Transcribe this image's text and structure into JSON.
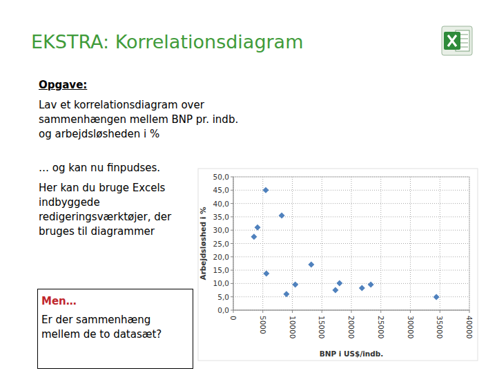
{
  "slide": {
    "title": "EKSTRA: Korrelationsdiagram",
    "task_heading": "Opgave:",
    "task_text": "Lav et korrelationsdiagram over sammenhængen mellem BNP pr. indb. og arbejdsløsheden i %",
    "note": "… og kan nu finpudses.",
    "hint": "Her kan du bruge Excels indbyggede redigeringsværktøjer, der bruges til diagrammer",
    "box_heading": "Men…",
    "box_text": "Er der sammenhæng mellem de to datasæt?"
  },
  "chart_data": {
    "type": "scatter",
    "x_label": "BNP i US$/indb.",
    "y_label": "Arbejdsløshed i %",
    "x": [
      3500,
      4100,
      5500,
      5600,
      8200,
      9000,
      10500,
      13200,
      17300,
      18000,
      21800,
      23300,
      34400
    ],
    "values": [
      27.5,
      31.0,
      45.0,
      13.7,
      35.5,
      6.0,
      9.6,
      17.1,
      7.5,
      10.1,
      8.3,
      9.6,
      4.9
    ],
    "color": "#4f81bd",
    "marker": "diamond",
    "xlim": [
      0,
      40000
    ],
    "xticks": [
      0,
      5000,
      10000,
      15000,
      20000,
      25000,
      30000,
      35000,
      40000
    ],
    "ylim": [
      0,
      50
    ],
    "yticks": [
      {
        "value": 0,
        "label": "0,0"
      },
      {
        "value": 5,
        "label": "5,0"
      },
      {
        "value": 10,
        "label": "10,0"
      },
      {
        "value": 15,
        "label": "15,0"
      },
      {
        "value": 20,
        "label": "20,0"
      },
      {
        "value": 25,
        "label": "25,0"
      },
      {
        "value": 30,
        "label": "30,0"
      },
      {
        "value": 35,
        "label": "35,0"
      },
      {
        "value": 40,
        "label": "40,0"
      },
      {
        "value": 45,
        "label": "45,0"
      },
      {
        "value": 50,
        "label": "50,0"
      }
    ],
    "grid": true
  }
}
